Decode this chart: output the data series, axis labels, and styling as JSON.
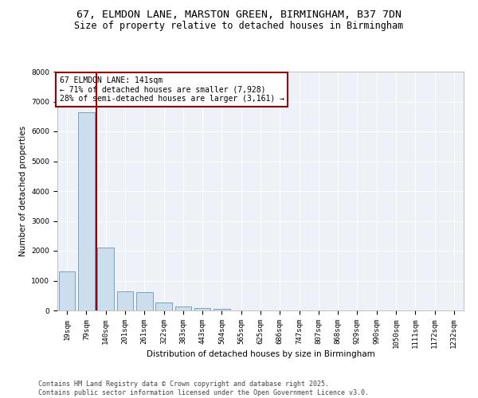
{
  "title_line1": "67, ELMDON LANE, MARSTON GREEN, BIRMINGHAM, B37 7DN",
  "title_line2": "Size of property relative to detached houses in Birmingham",
  "xlabel": "Distribution of detached houses by size in Birmingham",
  "ylabel": "Number of detached properties",
  "categories": [
    "19sqm",
    "79sqm",
    "140sqm",
    "201sqm",
    "261sqm",
    "322sqm",
    "383sqm",
    "443sqm",
    "504sqm",
    "565sqm",
    "625sqm",
    "686sqm",
    "747sqm",
    "807sqm",
    "868sqm",
    "929sqm",
    "990sqm",
    "1050sqm",
    "1111sqm",
    "1172sqm",
    "1232sqm"
  ],
  "values": [
    1300,
    6650,
    2100,
    650,
    620,
    280,
    130,
    90,
    50,
    0,
    0,
    0,
    0,
    0,
    0,
    0,
    0,
    0,
    0,
    0,
    0
  ],
  "bar_color": "#ccdded",
  "bar_edge_color": "#6699bb",
  "highlight_line_color": "#990000",
  "annotation_box_color": "#990000",
  "annotation_text_line1": "67 ELMDON LANE: 141sqm",
  "annotation_text_line2": "← 71% of detached houses are smaller (7,928)",
  "annotation_text_line3": "28% of semi-detached houses are larger (3,161) →",
  "ylim": [
    0,
    8000
  ],
  "yticks": [
    0,
    1000,
    2000,
    3000,
    4000,
    5000,
    6000,
    7000,
    8000
  ],
  "footer_line1": "Contains HM Land Registry data © Crown copyright and database right 2025.",
  "footer_line2": "Contains public sector information licensed under the Open Government Licence v3.0.",
  "background_color": "#ffffff",
  "plot_bg_color": "#eef2f8",
  "grid_color": "#ffffff",
  "title_fontsize": 9.5,
  "subtitle_fontsize": 8.5,
  "axis_label_fontsize": 7.5,
  "tick_fontsize": 6.5,
  "annotation_fontsize": 7,
  "footer_fontsize": 6
}
